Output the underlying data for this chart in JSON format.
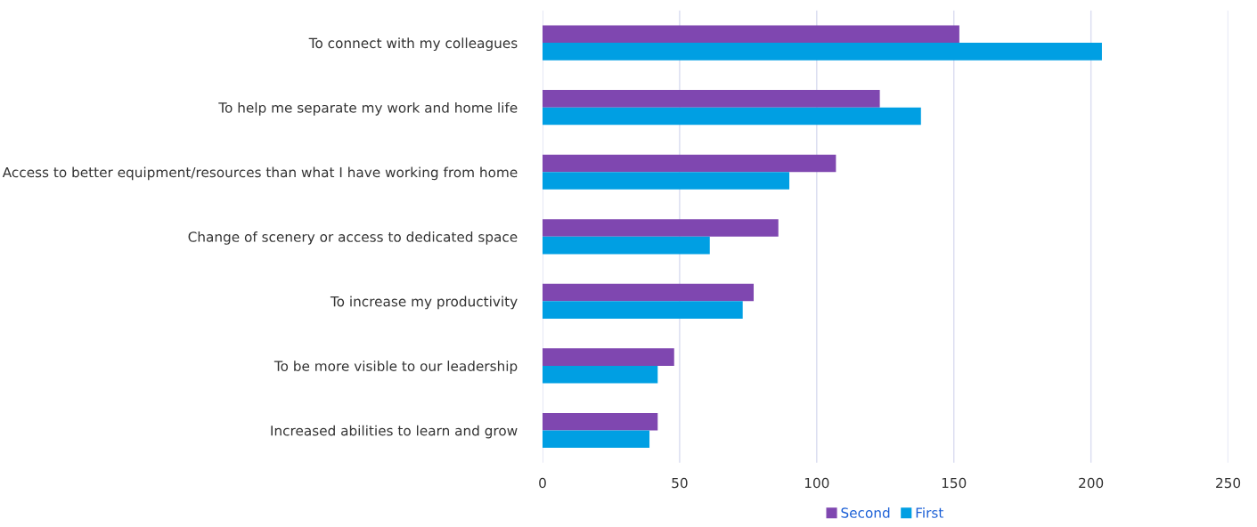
{
  "chart_data": {
    "type": "bar",
    "orientation": "horizontal",
    "categories": [
      "To connect with my colleagues",
      "To help me separate my work and home life",
      "Access to better equipment/resources than what I have working from home",
      "Change of scenery or access to dedicated space",
      "To increase my productivity",
      "To be more visible to our leadership",
      "Increased abilities to learn and grow"
    ],
    "series": [
      {
        "name": "Second",
        "color": "#7f47b0",
        "values": [
          152,
          123,
          107,
          86,
          77,
          48,
          42
        ]
      },
      {
        "name": "First",
        "color": "#009fe3",
        "values": [
          204,
          138,
          90,
          61,
          73,
          42,
          39
        ]
      }
    ],
    "xlim": [
      0,
      250
    ],
    "xticks": [
      0,
      50,
      100,
      150,
      200,
      250
    ],
    "grid": "x",
    "legend": "bottom"
  }
}
